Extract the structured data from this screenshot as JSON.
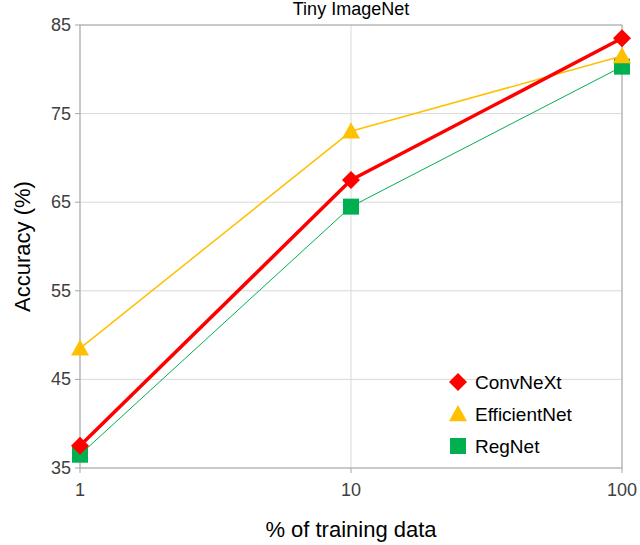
{
  "chart_data": {
    "type": "line",
    "title": "Tiny ImageNet",
    "x_label": "% of training data",
    "y_label": "Accuracy (%)",
    "x": [
      1,
      10,
      100
    ],
    "series": [
      {
        "name": "ConvNeXt",
        "color": "#ff0000",
        "marker": "diamond",
        "values": [
          37.5,
          67.5,
          83.5
        ]
      },
      {
        "name": "EfficientNet",
        "color": "#ffc000",
        "marker": "triangle",
        "values": [
          48.5,
          73,
          81.5
        ]
      },
      {
        "name": "RegNet",
        "color": "#00b050",
        "marker": "square",
        "values": [
          36.5,
          64.5,
          80.3
        ]
      }
    ],
    "xlim": [
      1,
      100
    ],
    "xticks": [
      1,
      10,
      100
    ],
    "ylim": [
      35,
      85
    ],
    "yticks": [
      35,
      45,
      55,
      65,
      75,
      85
    ],
    "log": "x",
    "grid": true,
    "legend": "lower right"
  }
}
